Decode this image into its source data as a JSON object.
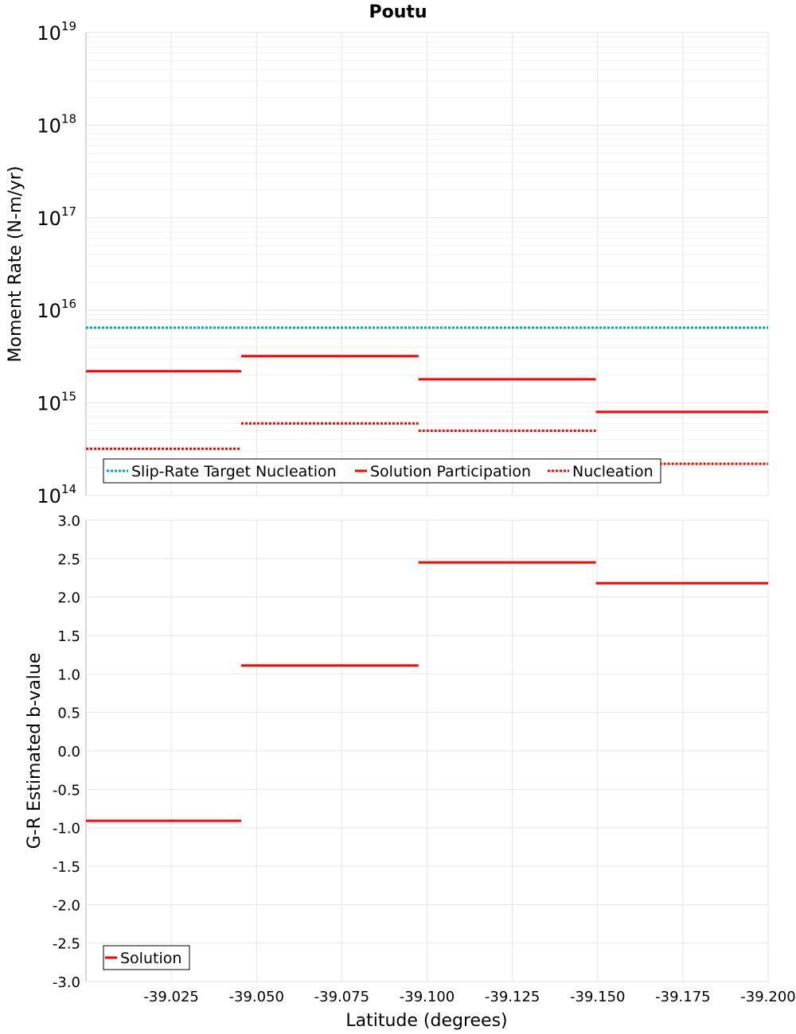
{
  "chart_data": [
    {
      "type": "line",
      "title": "Poutu",
      "xlabel": "",
      "ylabel": "Moment Rate (N-m/yr)",
      "yscale": "log",
      "ylim": [
        100000000000000.0,
        1e+19
      ],
      "xlim": [
        -39.0,
        -39.2
      ],
      "ytick_exponents": [
        "14",
        "15",
        "16",
        "17",
        "18",
        "19"
      ],
      "ytick_base": "10",
      "series": [
        {
          "name": "Slip-Rate Target Nucleation",
          "color": "#00aaaa",
          "style": "dotted",
          "segments": [
            {
              "x": [
                -39.0,
                -39.2
              ],
              "y": [
                6500000000000000.0,
                6500000000000000.0
              ]
            }
          ]
        },
        {
          "name": "Solution Participation",
          "color": "#ff0000",
          "style": "solid",
          "segments": [
            {
              "x": [
                -39.0,
                -39.0455
              ],
              "y": [
                2200000000000000.0,
                2200000000000000.0
              ]
            },
            {
              "x": [
                -39.0455,
                -39.0975
              ],
              "y": [
                3200000000000000.0,
                3200000000000000.0
              ]
            },
            {
              "x": [
                -39.0975,
                -39.1495
              ],
              "y": [
                1800000000000000.0,
                1800000000000000.0
              ]
            },
            {
              "x": [
                -39.1495,
                -39.2
              ],
              "y": [
                800000000000000.0,
                800000000000000.0
              ]
            }
          ]
        },
        {
          "name": "Nucleation",
          "color": "#ff0000",
          "style": "dotted",
          "segments": [
            {
              "x": [
                -39.0,
                -39.0455
              ],
              "y": [
                320000000000000.0,
                320000000000000.0
              ]
            },
            {
              "x": [
                -39.0455,
                -39.0975
              ],
              "y": [
                600000000000000.0,
                600000000000000.0
              ]
            },
            {
              "x": [
                -39.0975,
                -39.1495
              ],
              "y": [
                500000000000000.0,
                500000000000000.0
              ]
            },
            {
              "x": [
                -39.1495,
                -39.2
              ],
              "y": [
                220000000000000.0,
                220000000000000.0
              ]
            }
          ]
        }
      ],
      "legend": [
        "Slip-Rate Target Nucleation",
        "Solution Participation",
        "Nucleation"
      ],
      "legend_position": "bottom-left",
      "grid": true
    },
    {
      "type": "line",
      "title": "",
      "xlabel": "Latitude (degrees)",
      "ylabel": "G-R Estimated b-value",
      "ylim": [
        -3.0,
        3.0
      ],
      "xlim": [
        -39.0,
        -39.2
      ],
      "yticks": [
        "3.0",
        "2.5",
        "2.0",
        "1.5",
        "1.0",
        "0.5",
        "0.0",
        "-0.5",
        "-1.0",
        "-1.5",
        "-2.0",
        "-2.5",
        "-3.0"
      ],
      "xticks": [
        "-39.025",
        "-39.050",
        "-39.075",
        "-39.100",
        "-39.125",
        "-39.150",
        "-39.175",
        "-39.200"
      ],
      "series": [
        {
          "name": "Solution",
          "color": "#ff0000",
          "style": "solid",
          "segments": [
            {
              "x": [
                -39.0,
                -39.0455
              ],
              "y": [
                -0.91,
                -0.91
              ]
            },
            {
              "x": [
                -39.0455,
                -39.0975
              ],
              "y": [
                1.11,
                1.11
              ]
            },
            {
              "x": [
                -39.0975,
                -39.1495
              ],
              "y": [
                2.45,
                2.45
              ]
            },
            {
              "x": [
                -39.1495,
                -39.2
              ],
              "y": [
                2.18,
                2.18
              ]
            }
          ]
        }
      ],
      "legend": [
        "Solution"
      ],
      "legend_position": "bottom-left",
      "grid": true
    }
  ]
}
